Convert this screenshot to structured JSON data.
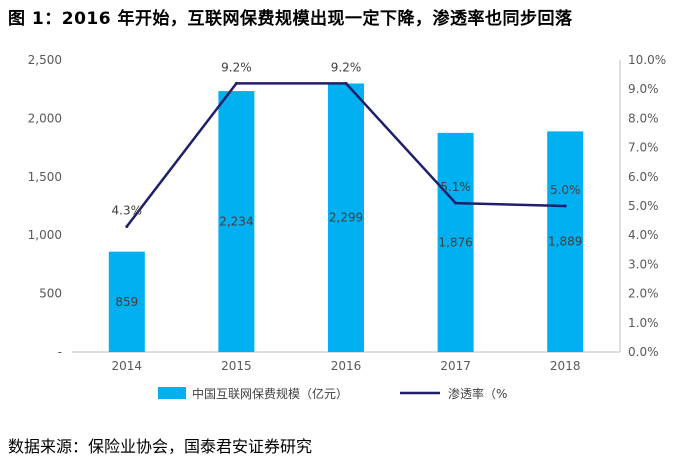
{
  "figure_title": "图 1：2016 年开始，互联网保费规模出现一定下降，渗透率也同步回落",
  "source_text": "数据来源：保险业协会，国泰君安证券研究",
  "colors": {
    "bar": "#00b0f0",
    "line": "#1f1f6b",
    "axis": "#bfbfbf",
    "text": "#595959"
  },
  "chart_data": {
    "type": "bar",
    "categories": [
      "2014",
      "2015",
      "2016",
      "2017",
      "2018"
    ],
    "series": [
      {
        "name": "中国互联网保费规模（亿元）",
        "type": "bar",
        "axis": "left",
        "values": [
          859,
          2234,
          2299,
          1876,
          1889
        ],
        "labels": [
          "859",
          "2,234",
          "2,299",
          "1,876",
          "1,889"
        ]
      },
      {
        "name": "渗透率（%",
        "type": "line",
        "axis": "right",
        "values": [
          4.3,
          9.2,
          9.2,
          5.1,
          5.0
        ],
        "labels": [
          "4.3%",
          "9.2%",
          "9.2%",
          "5.1%",
          "5.0%"
        ]
      }
    ],
    "ylim": [
      0,
      2500
    ],
    "yticks": [
      0,
      500,
      1000,
      1500,
      2000,
      2500
    ],
    "ytick_labels": [
      "-",
      "500",
      "1,000",
      "1,500",
      "2,000",
      "2,500"
    ],
    "y2lim": [
      0,
      10
    ],
    "y2ticks": [
      0,
      1,
      2,
      3,
      4,
      5,
      6,
      7,
      8,
      9,
      10
    ],
    "y2tick_labels": [
      "0.0%",
      "1.0%",
      "2.0%",
      "3.0%",
      "4.0%",
      "5.0%",
      "6.0%",
      "7.0%",
      "8.0%",
      "9.0%",
      "10.0%"
    ],
    "legend_position": "bottom",
    "grid": false
  }
}
